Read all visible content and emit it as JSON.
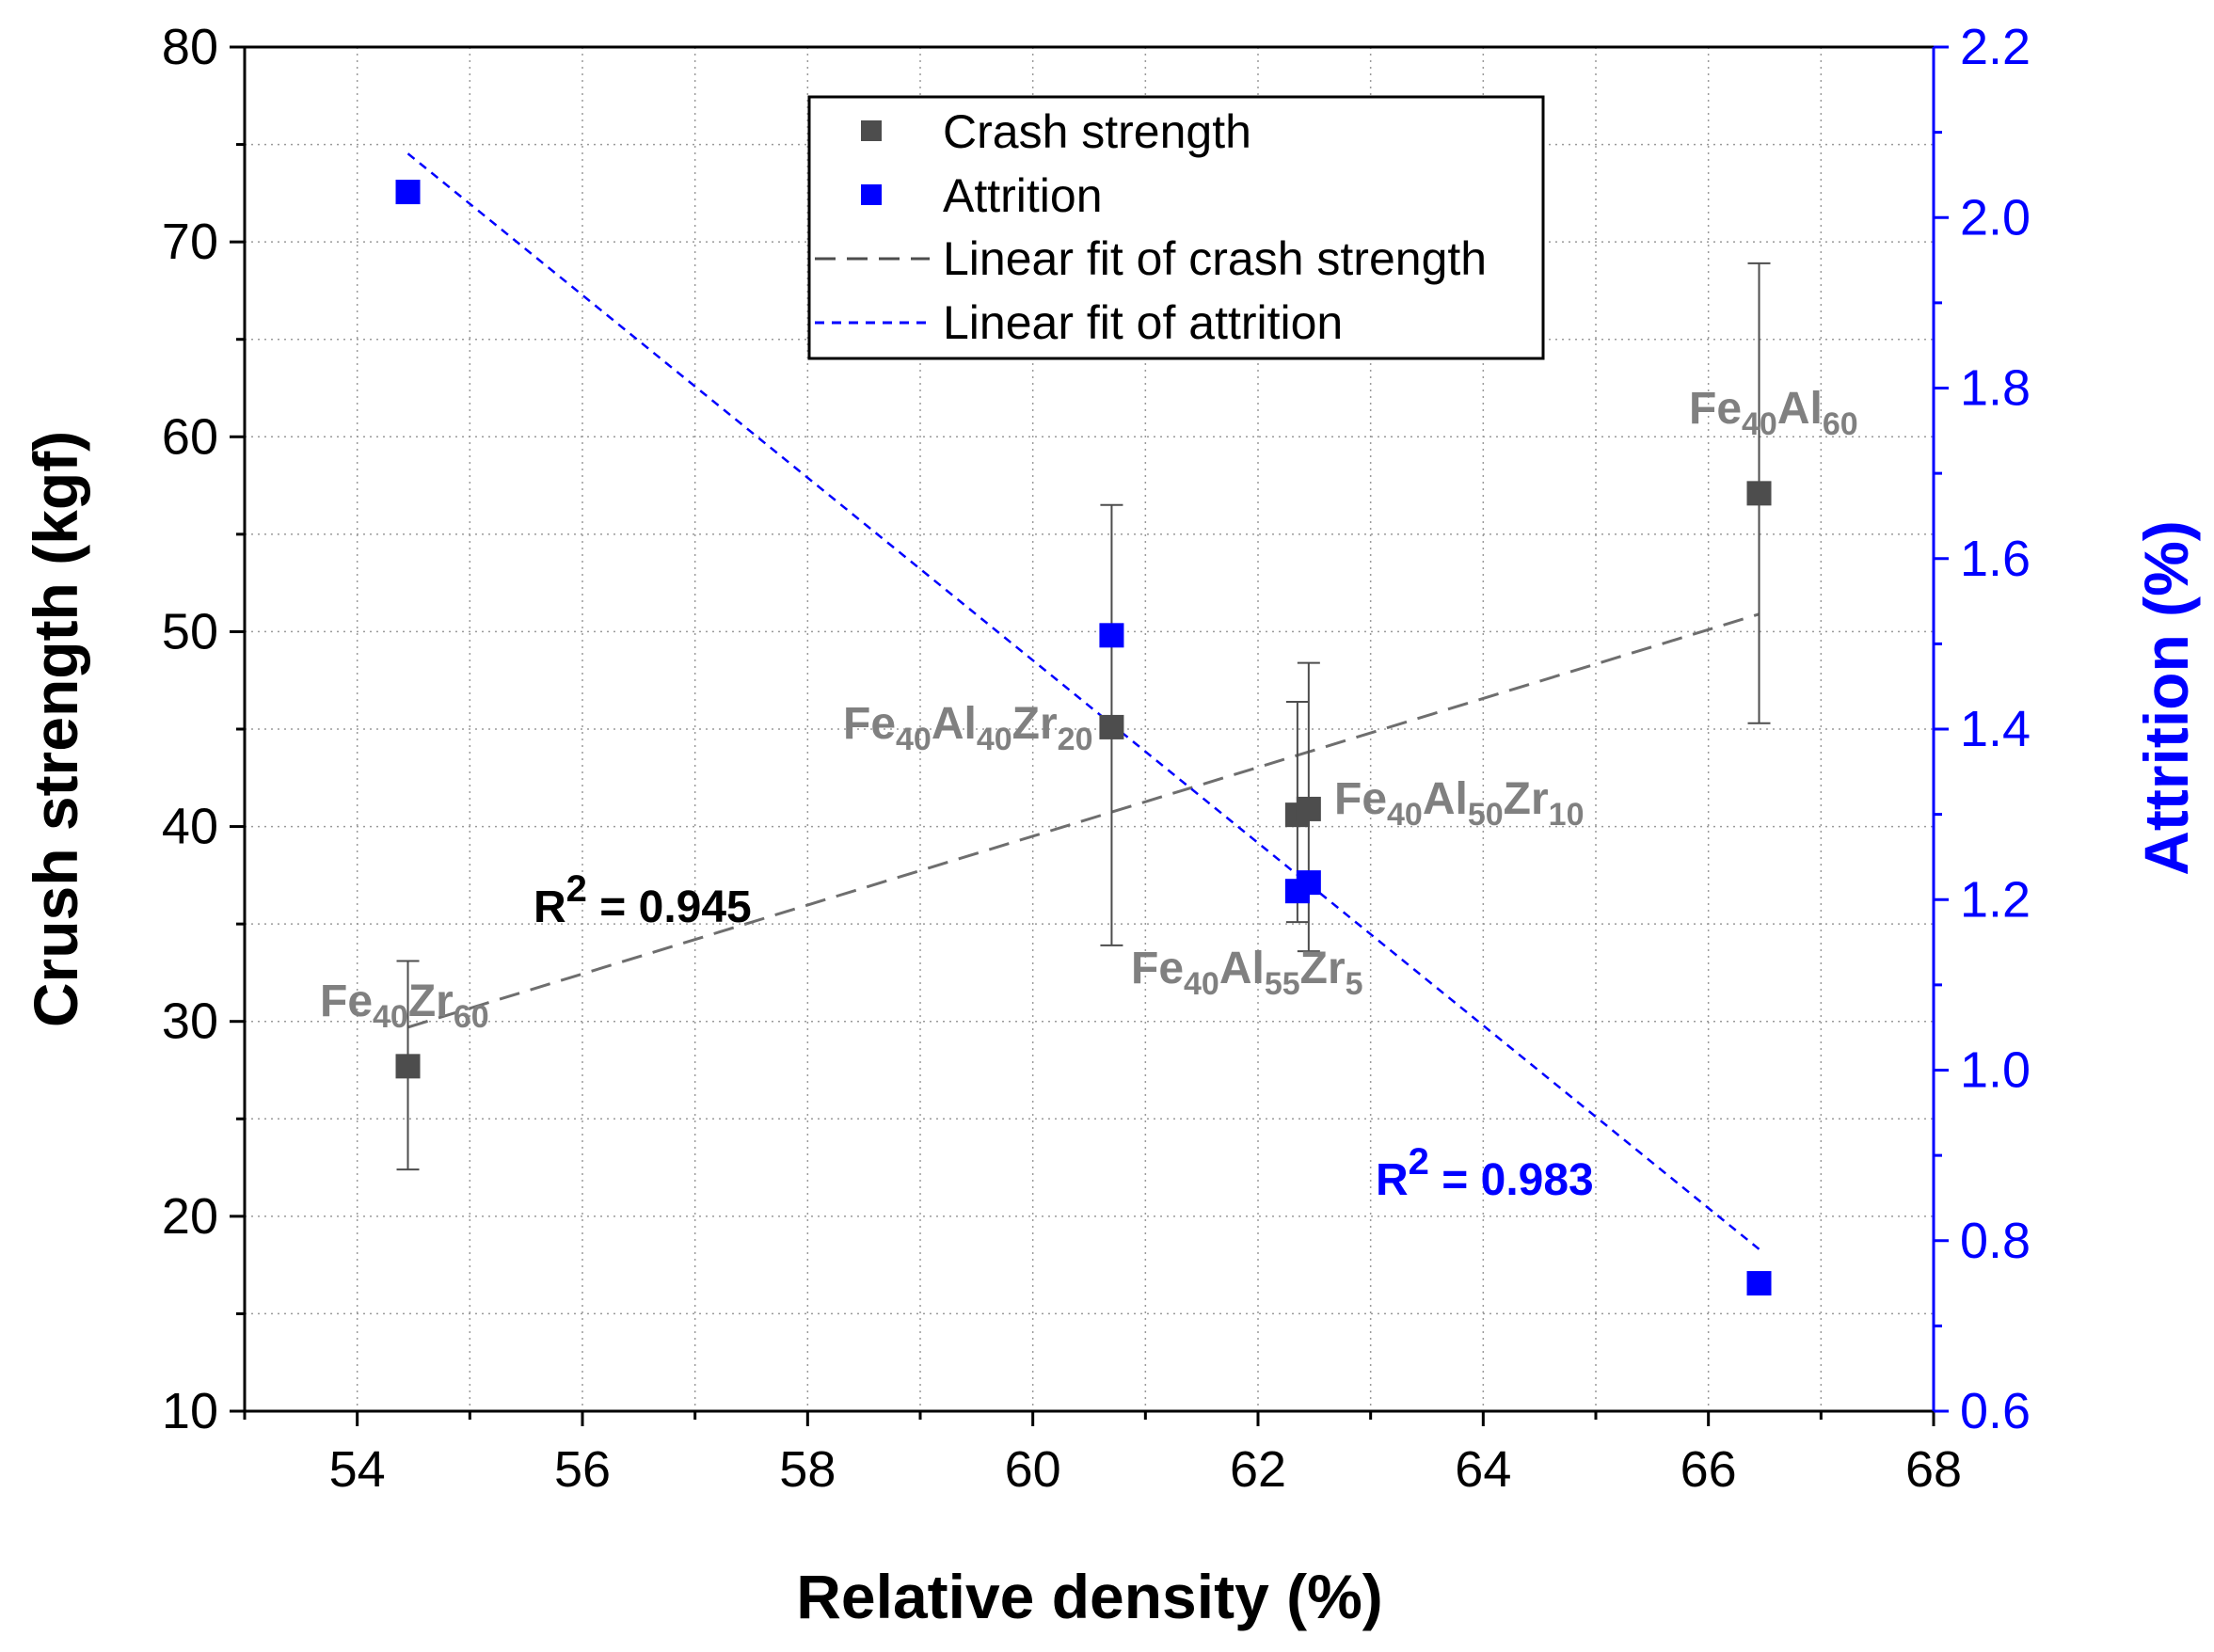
{
  "chart_data": {
    "type": "scatter",
    "xlabel": "Relative density (%)",
    "ylabel_left": "Crush strength (kgf)",
    "ylabel_right": "Attrition (%)",
    "xlim": [
      53,
      68
    ],
    "ylim_left": [
      10,
      80
    ],
    "ylim_right": [
      0.6,
      2.2
    ],
    "x_ticks": [
      "54",
      "56",
      "58",
      "60",
      "62",
      "64",
      "66",
      "68"
    ],
    "y_ticks_left": [
      "10",
      "20",
      "30",
      "40",
      "50",
      "60",
      "70",
      "80"
    ],
    "y_ticks_right": [
      "0.6",
      "0.8",
      "1.0",
      "1.2",
      "1.4",
      "1.6",
      "1.8",
      "2.0",
      "2.2"
    ],
    "grid": true,
    "colors": {
      "crush": "#4d4d4d",
      "attrition": "#0000ff",
      "label_gray": "#808080",
      "axis_right": "#0000ff"
    },
    "series": [
      {
        "name": "Crash strength",
        "axis": "left",
        "points": [
          {
            "x": 54.45,
            "y": 27.7,
            "yerr_low": 22.4,
            "yerr_high": 33.1
          },
          {
            "x": 60.7,
            "y": 45.1,
            "yerr_low": 33.9,
            "yerr_high": 56.5
          },
          {
            "x": 62.35,
            "y": 40.6,
            "yerr_low": 35.1,
            "yerr_high": 46.4
          },
          {
            "x": 62.45,
            "y": 40.9,
            "yerr_low": 33.6,
            "yerr_high": 48.4
          },
          {
            "x": 66.45,
            "y": 57.1,
            "yerr_low": 45.3,
            "yerr_high": 68.9
          }
        ]
      },
      {
        "name": "Attrition",
        "axis": "right",
        "points": [
          {
            "x": 54.45,
            "y": 2.03
          },
          {
            "x": 60.7,
            "y": 1.51
          },
          {
            "x": 62.35,
            "y": 1.21
          },
          {
            "x": 62.45,
            "y": 1.22
          },
          {
            "x": 66.45,
            "y": 0.75
          }
        ]
      },
      {
        "name": "Linear fit of crash strength",
        "axis": "left",
        "line": [
          {
            "x": 54.45,
            "y": 29.7
          },
          {
            "x": 66.45,
            "y": 50.9
          }
        ]
      },
      {
        "name": "Linear fit of attrition",
        "axis": "right",
        "line": [
          {
            "x": 54.45,
            "y": 2.075
          },
          {
            "x": 66.45,
            "y": 0.79
          }
        ]
      }
    ],
    "legend": {
      "position": "top-center",
      "entries": [
        "Crash strength",
        "Attrition",
        "Linear fit of crash strength",
        "Linear fit of attrition"
      ]
    },
    "annotations": {
      "r2_crush": {
        "prefix": "R",
        "sup": "2",
        "text": " = 0.945"
      },
      "r2_attrition": {
        "prefix": "R",
        "sup": "2",
        "text": " = 0.983"
      },
      "labels": [
        {
          "id": "fe40zr60",
          "parts": [
            [
              "Fe",
              ""
            ],
            [
              "40",
              "sub"
            ],
            [
              "Zr",
              ""
            ],
            [
              "60",
              "sub"
            ]
          ]
        },
        {
          "id": "fe40al40zr20",
          "parts": [
            [
              "Fe",
              ""
            ],
            [
              "40",
              "sub"
            ],
            [
              "Al",
              ""
            ],
            [
              "40",
              "sub"
            ],
            [
              "Zr",
              ""
            ],
            [
              "20",
              "sub"
            ]
          ]
        },
        {
          "id": "fe40al55zr5",
          "parts": [
            [
              "Fe",
              ""
            ],
            [
              "40",
              "sub"
            ],
            [
              "Al",
              ""
            ],
            [
              "55",
              "sub"
            ],
            [
              "Zr",
              ""
            ],
            [
              "5",
              "sub"
            ]
          ]
        },
        {
          "id": "fe40al50zr10",
          "parts": [
            [
              "Fe",
              ""
            ],
            [
              "40",
              "sub"
            ],
            [
              "Al",
              ""
            ],
            [
              "50",
              "sub"
            ],
            [
              "Zr",
              ""
            ],
            [
              "10",
              "sub"
            ]
          ]
        },
        {
          "id": "fe40al60",
          "parts": [
            [
              "Fe",
              ""
            ],
            [
              "40",
              "sub"
            ],
            [
              "Al",
              ""
            ],
            [
              "60",
              "sub"
            ]
          ]
        }
      ]
    }
  }
}
